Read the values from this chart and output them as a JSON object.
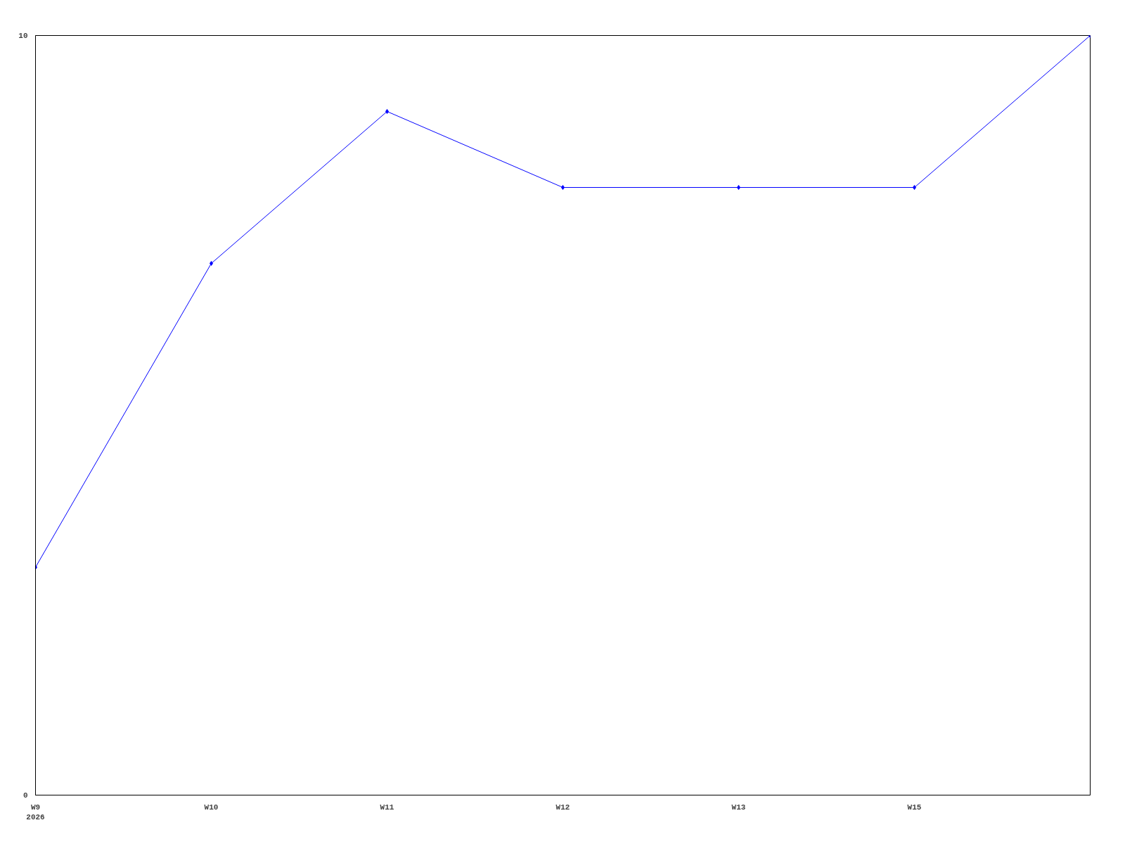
{
  "chart_data": {
    "type": "line",
    "categories": [
      "W9\n2026",
      "W10",
      "W11",
      "W12",
      "W13",
      "W15",
      null
    ],
    "series": [
      {
        "color": "#0000ff",
        "values": [
          3,
          7,
          9,
          8,
          8,
          8,
          10
        ]
      }
    ],
    "ylim": [
      0,
      10
    ],
    "yticks": [
      0,
      10
    ],
    "grid": false,
    "marker": "diamond",
    "line_style": "solid"
  }
}
